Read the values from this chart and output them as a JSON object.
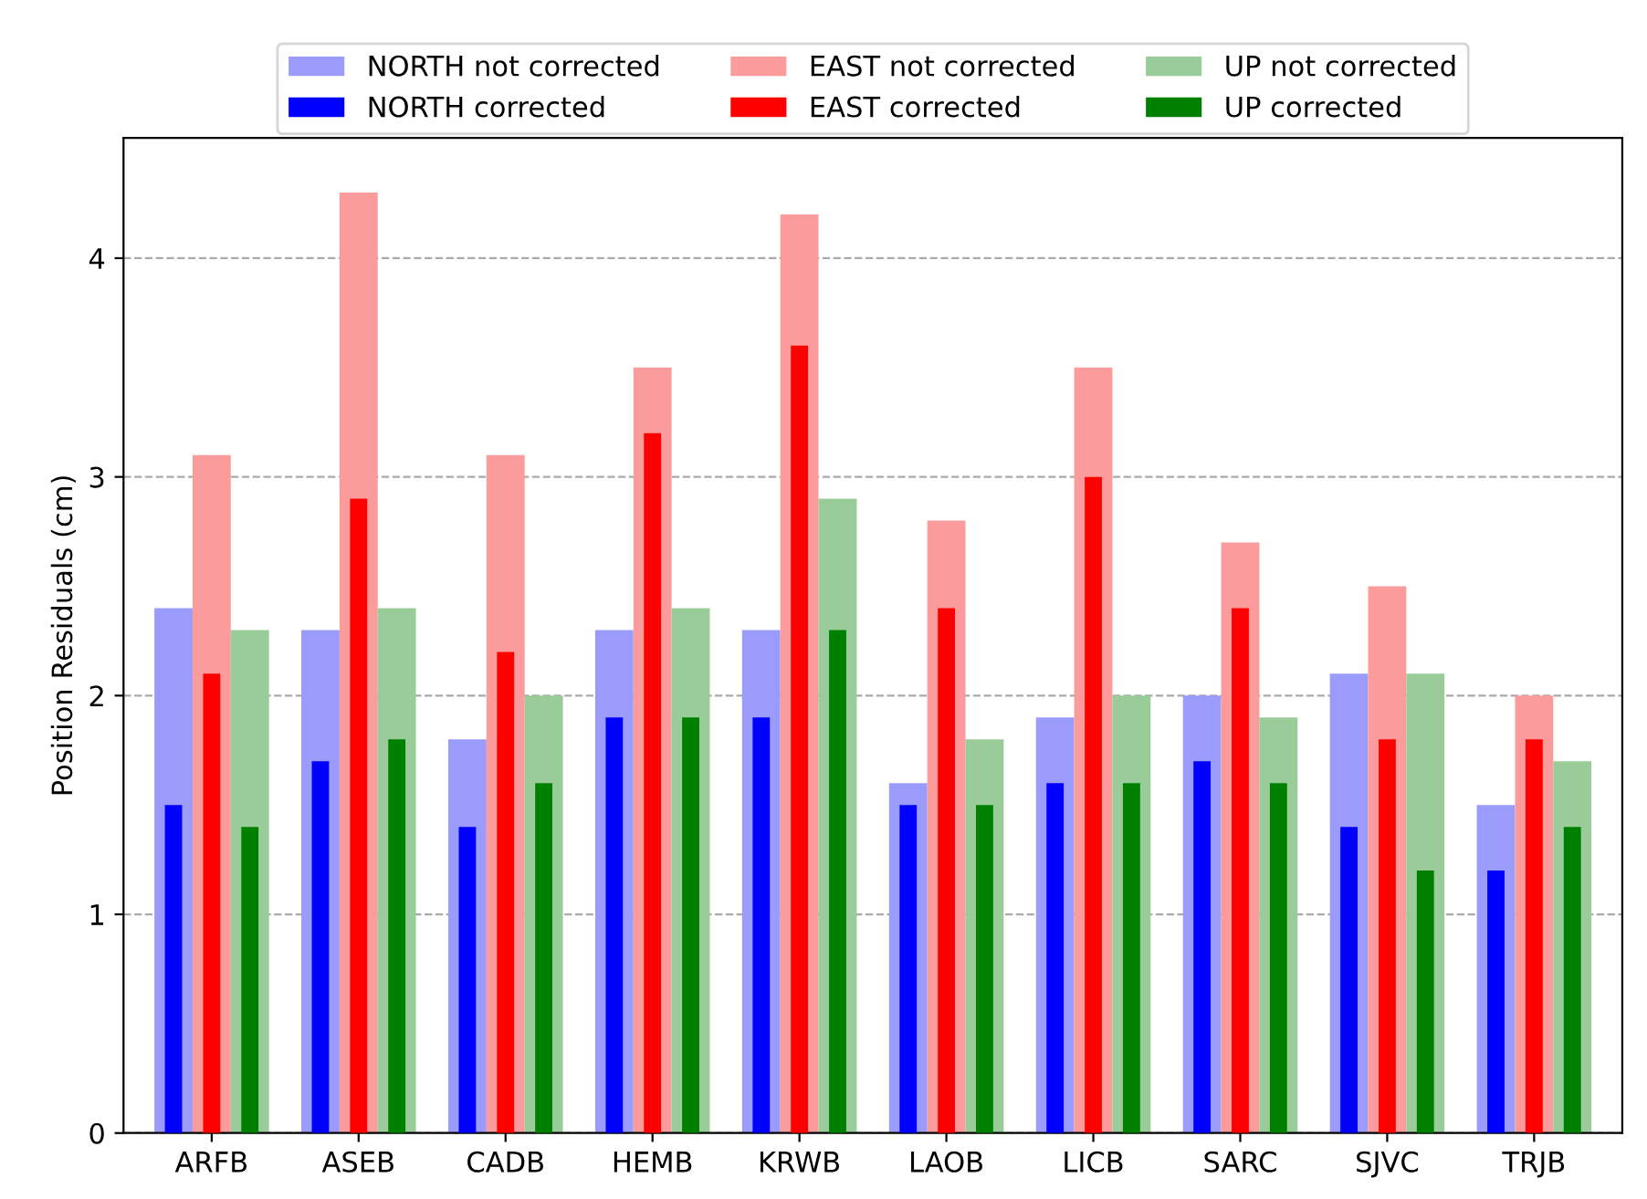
{
  "chart_data": {
    "type": "bar",
    "ylabel": "Position Residuals (cm)",
    "categories": [
      "ARFB",
      "ASEB",
      "CADB",
      "HEMB",
      "KRWB",
      "LAOB",
      "LICB",
      "SARC",
      "SJVC",
      "TRJB"
    ],
    "series": [
      {
        "name": "NORTH not corrected",
        "color": "#9b9bfb",
        "values": [
          2.4,
          2.3,
          1.8,
          2.3,
          2.3,
          1.6,
          1.9,
          2.0,
          2.1,
          1.5
        ]
      },
      {
        "name": "NORTH corrected",
        "color": "#0000ff",
        "values": [
          1.5,
          1.7,
          1.4,
          1.9,
          1.9,
          1.5,
          1.6,
          1.7,
          1.4,
          1.2
        ]
      },
      {
        "name": "EAST not corrected",
        "color": "#fb9b9b",
        "values": [
          3.1,
          4.3,
          3.1,
          3.5,
          4.2,
          2.8,
          3.5,
          2.7,
          2.5,
          2.0
        ]
      },
      {
        "name": "EAST corrected",
        "color": "#ff0000",
        "values": [
          2.1,
          2.9,
          2.2,
          3.2,
          3.6,
          2.4,
          3.0,
          2.4,
          1.8,
          1.8
        ]
      },
      {
        "name": "UP not corrected",
        "color": "#99cc99",
        "values": [
          2.3,
          2.4,
          2.0,
          2.4,
          2.9,
          1.8,
          2.0,
          1.9,
          2.1,
          1.7
        ]
      },
      {
        "name": "UP corrected",
        "color": "#008000",
        "values": [
          1.4,
          1.8,
          1.6,
          1.9,
          2.3,
          1.5,
          1.6,
          1.6,
          1.2,
          1.4
        ]
      }
    ],
    "ylim": [
      0,
      4.55
    ],
    "yticks": [
      0,
      1,
      2,
      3,
      4
    ],
    "grid": "y",
    "legend": "top"
  }
}
